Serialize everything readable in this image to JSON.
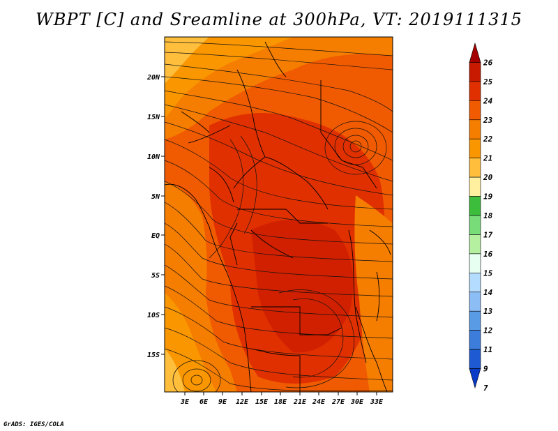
{
  "title": "WBPT [C] and Sreamline at 300hPa, VT: 2019111315",
  "credit": "GrADS: IGES/COLA",
  "map": {
    "lat_labels": [
      "20N",
      "15N",
      "10N",
      "5N",
      "EQ",
      "5S",
      "10S",
      "15S"
    ],
    "lon_labels": [
      "3E",
      "6E",
      "9E",
      "12E",
      "15E",
      "18E",
      "21E",
      "24E",
      "27E",
      "30E",
      "33E"
    ],
    "field": "Wet-bulb potential temperature (shaded) with streamlines"
  },
  "colorbar": {
    "labels": [
      "26",
      "25",
      "24",
      "23",
      "22",
      "21",
      "20",
      "19",
      "18",
      "17",
      "16",
      "15",
      "14",
      "13",
      "12",
      "11",
      "9",
      "7"
    ],
    "colors": [
      "#a50000",
      "#c81a00",
      "#e03000",
      "#f05a00",
      "#f57d00",
      "#fa9600",
      "#ffbe3c",
      "#fff0a0",
      "#3cbe3c",
      "#78dc78",
      "#b4f0a0",
      "#e6fff0",
      "#b4dcff",
      "#8cbef5",
      "#5a9be6",
      "#3c7ddc",
      "#1e5ad2",
      "#0a3cc8"
    ]
  }
}
